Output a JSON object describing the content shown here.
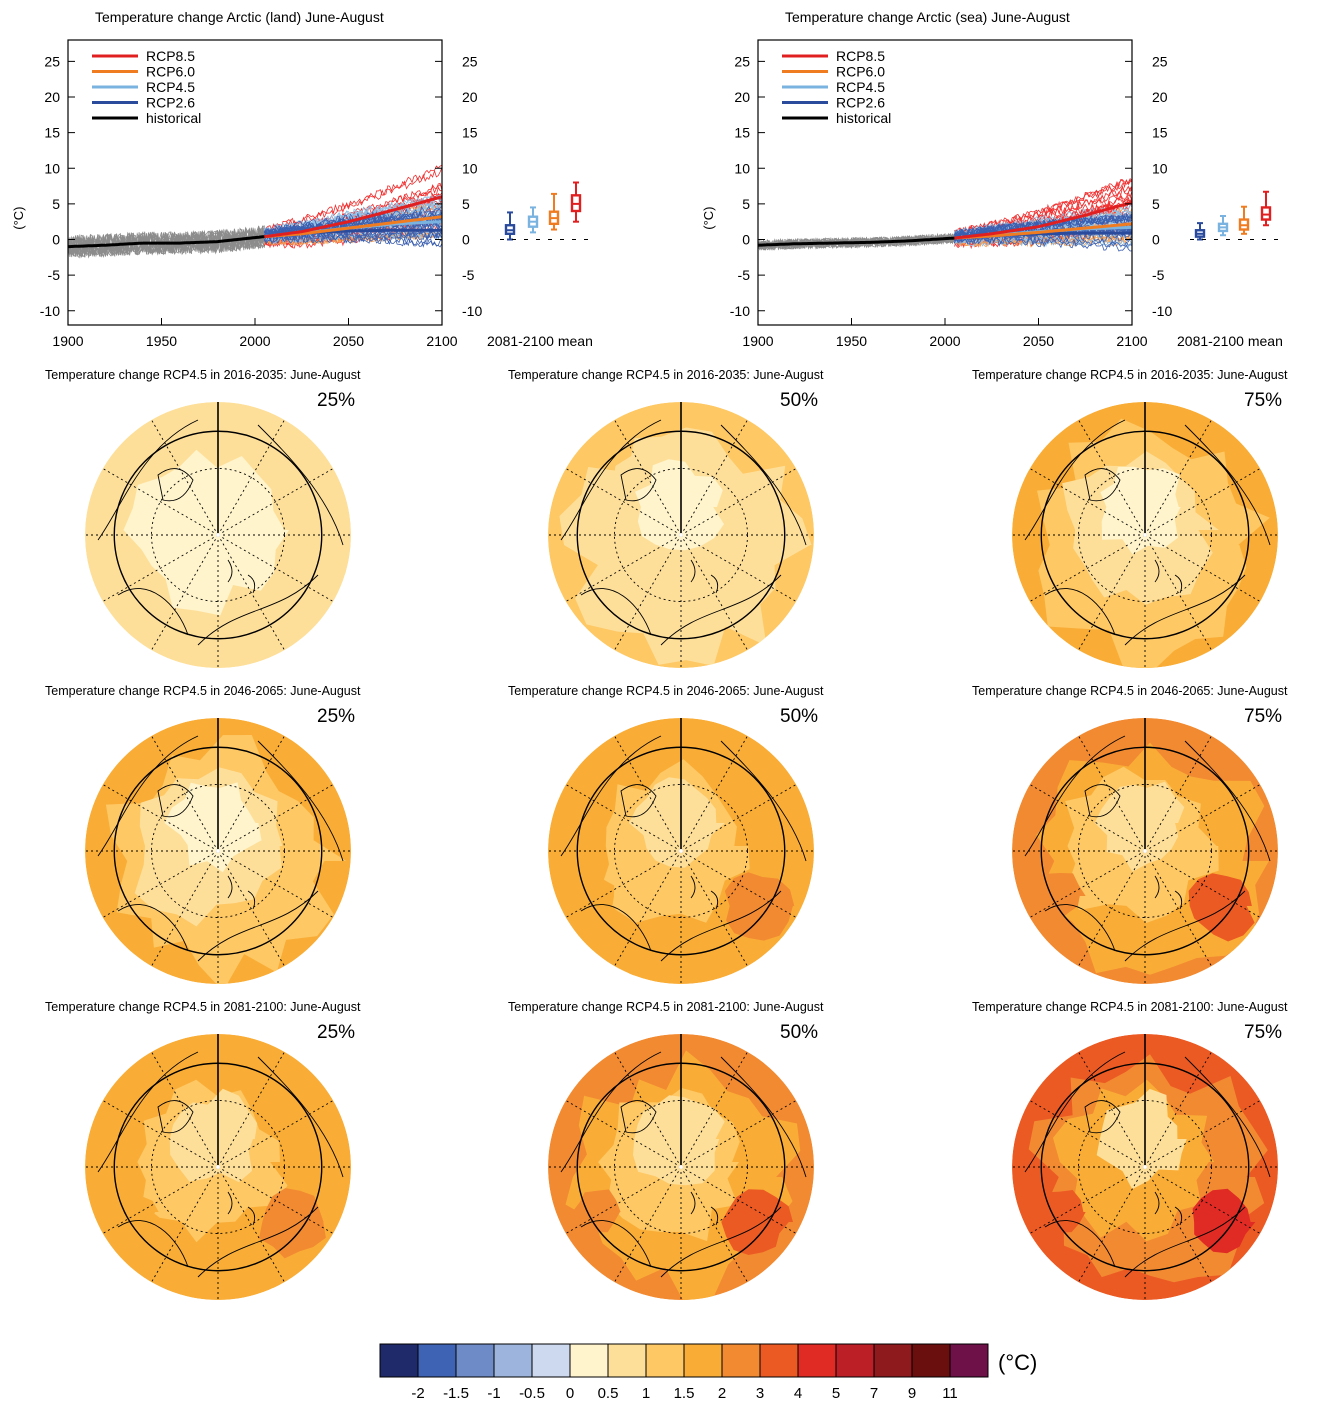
{
  "timeseries_panels": [
    {
      "title": "Temperature change Arctic (land) June-August",
      "ylabel": "(°C)",
      "box_label": "2081-2100 mean",
      "legend": [
        "RCP8.5",
        "RCP6.0",
        "RCP4.5",
        "RCP2.6",
        "historical"
      ]
    },
    {
      "title": "Temperature change Arctic (sea) June-August",
      "ylabel": "(°C)",
      "box_label": "2081-2100 mean",
      "legend": [
        "RCP8.5",
        "RCP6.0",
        "RCP4.5",
        "RCP2.6",
        "historical"
      ]
    }
  ],
  "map_rows": [
    {
      "title": "Temperature change RCP4.5 in 2016-2035: June-August",
      "maps": [
        {
          "pct": "25%",
          "level": 0
        },
        {
          "pct": "50%",
          "level": 1
        },
        {
          "pct": "75%",
          "level": 2
        }
      ]
    },
    {
      "title": "Temperature change RCP4.5 in 2046-2065: June-August",
      "maps": [
        {
          "pct": "25%",
          "level": 2
        },
        {
          "pct": "50%",
          "level": 3
        },
        {
          "pct": "75%",
          "level": 4
        }
      ]
    },
    {
      "title": "Temperature change RCP4.5 in 2081-2100: June-August",
      "maps": [
        {
          "pct": "25%",
          "level": 3
        },
        {
          "pct": "50%",
          "level": 4
        },
        {
          "pct": "75%",
          "level": 5
        }
      ]
    }
  ],
  "colorbar": {
    "unit": "(°C)",
    "labels": [
      "-2",
      "-1.5",
      "-1",
      "-0.5",
      "0",
      "0.5",
      "1",
      "1.5",
      "2",
      "3",
      "4",
      "5",
      "7",
      "9",
      "11"
    ],
    "colors": [
      "#1f2a6b",
      "#3f63b4",
      "#6e8bc8",
      "#9db4dc",
      "#ccd9ee",
      "#fff4cc",
      "#fedf9a",
      "#fec865",
      "#f9ad36",
      "#f28a32",
      "#ec5a24",
      "#e02b25",
      "#bd1f27",
      "#8e1a1d",
      "#6b0e0e",
      "#6e1149"
    ]
  },
  "chart_data": [
    {
      "type": "line",
      "title": "Temperature change Arctic (land) June-August",
      "ylabel": "(°C)",
      "xlim": [
        1900,
        2100
      ],
      "ylim": [
        -12,
        28
      ],
      "xticks": [
        1900,
        1950,
        2000,
        2050,
        2100
      ],
      "yticks": [
        -10,
        -5,
        0,
        5,
        10,
        15,
        20,
        25
      ],
      "legend_position": "top-left",
      "series": [
        {
          "name": "historical",
          "color": "#000000",
          "x": [
            1900,
            1920,
            1940,
            1960,
            1980,
            2005
          ],
          "y": [
            -1.0,
            -0.8,
            -0.5,
            -0.5,
            -0.3,
            0.4
          ]
        },
        {
          "name": "RCP2.6",
          "color": "#2a4a9c",
          "x": [
            2005,
            2025,
            2050,
            2075,
            2100
          ],
          "y": [
            0.4,
            0.9,
            1.2,
            1.3,
            1.3
          ]
        },
        {
          "name": "RCP4.5",
          "color": "#7ab3e0",
          "x": [
            2005,
            2025,
            2050,
            2075,
            2100
          ],
          "y": [
            0.4,
            0.9,
            1.6,
            2.2,
            2.5
          ]
        },
        {
          "name": "RCP6.0",
          "color": "#f07c22",
          "x": [
            2005,
            2025,
            2050,
            2075,
            2100
          ],
          "y": [
            0.4,
            0.8,
            1.6,
            2.4,
            3.2
          ]
        },
        {
          "name": "RCP8.5",
          "color": "#e02020",
          "x": [
            2005,
            2025,
            2050,
            2075,
            2100
          ],
          "y": [
            0.4,
            1.1,
            2.5,
            4.2,
            6.0
          ]
        }
      ],
      "boxplots": [
        {
          "name": "RCP2.6",
          "min": 0.0,
          "q1": 0.8,
          "median": 1.3,
          "q3": 2.0,
          "max": 3.8
        },
        {
          "name": "RCP4.5",
          "min": 1.0,
          "q1": 1.8,
          "median": 2.5,
          "q3": 3.2,
          "max": 4.5
        },
        {
          "name": "RCP6.0",
          "min": 1.4,
          "q1": 2.2,
          "median": 3.0,
          "q3": 3.9,
          "max": 6.4
        },
        {
          "name": "RCP8.5",
          "min": 2.5,
          "q1": 4.0,
          "median": 5.0,
          "q3": 6.2,
          "max": 8.0
        }
      ]
    },
    {
      "type": "line",
      "title": "Temperature change Arctic (sea) June-August",
      "ylabel": "(°C)",
      "xlim": [
        1900,
        2100
      ],
      "ylim": [
        -12,
        28
      ],
      "xticks": [
        1900,
        1950,
        2000,
        2050,
        2100
      ],
      "yticks": [
        -10,
        -5,
        0,
        5,
        10,
        15,
        20,
        25
      ],
      "legend_position": "top-left",
      "series": [
        {
          "name": "historical",
          "color": "#000000",
          "x": [
            1900,
            1920,
            1940,
            1960,
            1980,
            2005
          ],
          "y": [
            -0.8,
            -0.6,
            -0.5,
            -0.4,
            -0.2,
            0.2
          ]
        },
        {
          "name": "RCP2.6",
          "color": "#2a4a9c",
          "x": [
            2005,
            2025,
            2050,
            2075,
            2100
          ],
          "y": [
            0.2,
            0.6,
            0.8,
            0.9,
            0.9
          ]
        },
        {
          "name": "RCP4.5",
          "color": "#7ab3e0",
          "x": [
            2005,
            2025,
            2050,
            2075,
            2100
          ],
          "y": [
            0.2,
            0.6,
            1.1,
            1.5,
            1.7
          ]
        },
        {
          "name": "RCP6.0",
          "color": "#f07c22",
          "x": [
            2005,
            2025,
            2050,
            2075,
            2100
          ],
          "y": [
            0.2,
            0.5,
            1.0,
            1.6,
            2.2
          ]
        },
        {
          "name": "RCP8.5",
          "color": "#e02020",
          "x": [
            2005,
            2025,
            2050,
            2075,
            2100
          ],
          "y": [
            0.2,
            0.8,
            1.8,
            3.4,
            5.2
          ]
        }
      ],
      "boxplots": [
        {
          "name": "RCP2.6",
          "min": 0.0,
          "q1": 0.4,
          "median": 0.8,
          "q3": 1.3,
          "max": 2.3
        },
        {
          "name": "RCP4.5",
          "min": 0.6,
          "q1": 1.2,
          "median": 1.7,
          "q3": 2.2,
          "max": 3.3
        },
        {
          "name": "RCP6.0",
          "min": 0.8,
          "q1": 1.4,
          "median": 2.0,
          "q3": 2.8,
          "max": 4.6
        },
        {
          "name": "RCP8.5",
          "min": 2.0,
          "q1": 2.8,
          "median": 3.5,
          "q3": 4.5,
          "max": 6.7
        }
      ]
    }
  ]
}
